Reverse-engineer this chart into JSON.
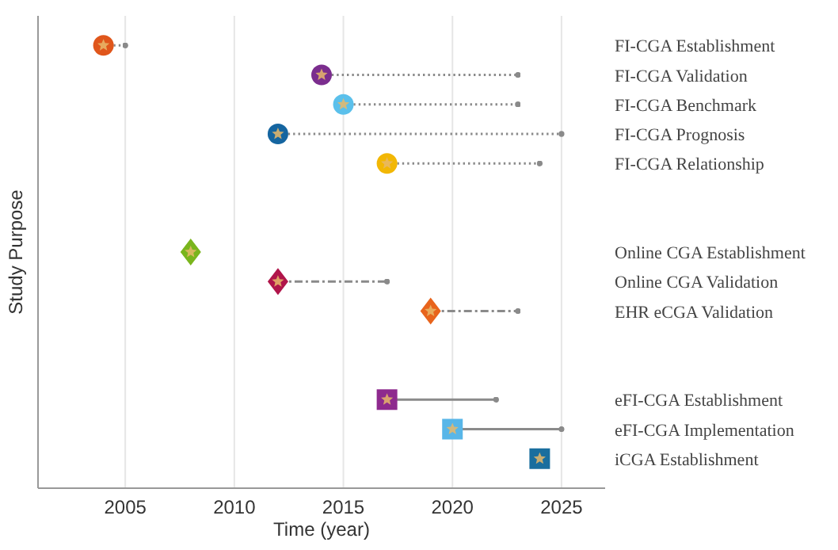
{
  "chart_data": {
    "type": "scatter",
    "orientation": "horizontal",
    "xlabel": "Time (year)",
    "ylabel": "Study Purpose",
    "categories": [
      "FI-CGA Establishment",
      "FI-CGA Validation",
      "FI-CGA Benchmark",
      "FI-CGA Prognosis",
      "FI-CGA Relationship",
      null,
      null,
      "Online CGA Establishment",
      "Online CGA Validation",
      "EHR eCGA Validation",
      null,
      null,
      "eFI-CGA Establishment",
      "eFI-CGA Implementation",
      "iCGA Establishment"
    ],
    "xlim": [
      2001,
      2027
    ],
    "xticks": [
      2005,
      2010,
      2015,
      2020,
      2025
    ],
    "grid": "x",
    "series": [
      {
        "marker": "circle",
        "line_style": "dotted",
        "colors": [
          "#e0561b",
          "#7b2d8e",
          "#5bc0eb",
          "#1565a0",
          "#f2b705",
          null,
          null,
          null,
          null,
          null,
          null,
          null,
          null,
          null,
          null
        ],
        "values": [
          2004,
          2014,
          2015,
          2012,
          2017,
          null,
          null,
          null,
          null,
          null,
          null,
          null,
          null,
          null,
          null
        ],
        "errors": [
          [
            2004,
            2005
          ],
          [
            2014,
            2023
          ],
          [
            2015,
            2023
          ],
          [
            2012,
            2025
          ],
          [
            2017,
            2024
          ],
          null,
          null,
          null,
          null,
          null,
          null,
          null,
          null,
          null,
          null
        ]
      },
      {
        "marker": "diamond",
        "line_style": "dashed",
        "colors": [
          null,
          null,
          null,
          null,
          null,
          null,
          null,
          "#7ab51d",
          "#b0154a",
          "#e8641c",
          null,
          null,
          null,
          null,
          null
        ],
        "values": [
          null,
          null,
          null,
          null,
          null,
          null,
          null,
          2008,
          2012,
          2019,
          null,
          null,
          null,
          null,
          null
        ],
        "errors": [
          null,
          null,
          null,
          null,
          null,
          null,
          null,
          null,
          [
            2012,
            2017
          ],
          [
            2019,
            2023
          ],
          null,
          null,
          null,
          null,
          null
        ]
      },
      {
        "marker": "square",
        "line_style": "solid",
        "colors": [
          null,
          null,
          null,
          null,
          null,
          null,
          null,
          null,
          null,
          null,
          null,
          null,
          "#8e2a8e",
          "#58b6e8",
          "#1a6e9e"
        ],
        "values": [
          null,
          null,
          null,
          null,
          null,
          null,
          null,
          null,
          null,
          null,
          null,
          null,
          2017,
          2020,
          2024
        ],
        "errors": [
          null,
          null,
          null,
          null,
          null,
          null,
          null,
          null,
          null,
          null,
          null,
          null,
          [
            2017,
            2022
          ],
          [
            2020,
            2025
          ],
          null
        ]
      }
    ]
  }
}
